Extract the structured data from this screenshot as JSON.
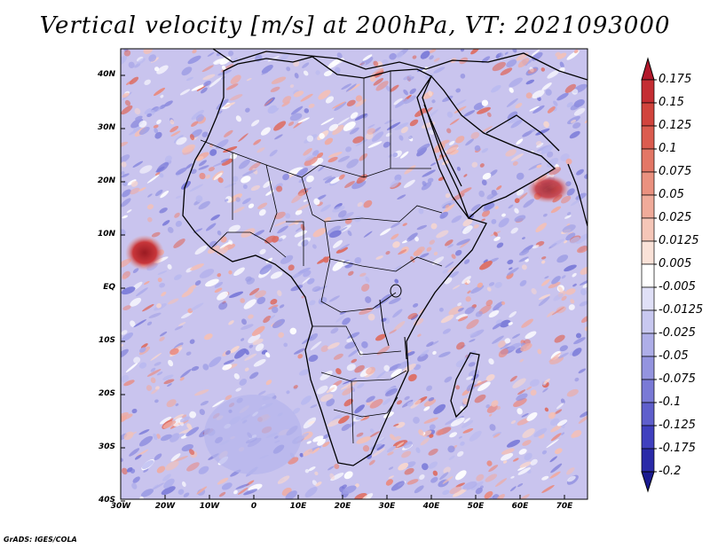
{
  "title": "Vertical velocity [m/s] at 200hPa, VT: 2021093000",
  "footer": "GrADS: IGES/COLA",
  "map": {
    "lat_labels": [
      "40N",
      "30N",
      "20N",
      "10N",
      "EQ",
      "10S",
      "20S",
      "30S",
      "40S"
    ],
    "lon_labels": [
      "30W",
      "20W",
      "10W",
      "0",
      "10E",
      "20E",
      "30E",
      "40E",
      "50E",
      "60E",
      "70E"
    ]
  },
  "colorbar": {
    "labels": [
      "0.175",
      "0.15",
      "0.125",
      "0.1",
      "0.075",
      "0.05",
      "0.025",
      "0.0125",
      "0.005",
      "-0.005",
      "-0.0125",
      "-0.025",
      "-0.05",
      "-0.075",
      "-0.1",
      "-0.125",
      "-0.175",
      "-0.2"
    ],
    "colors": [
      "#b2182b",
      "#c42e33",
      "#d1443d",
      "#db5c4f",
      "#e37766",
      "#ea917f",
      "#f0ab9a",
      "#f5c6b8",
      "#fae2d8",
      "#ffffff",
      "#e0e0f7",
      "#c8c8f0",
      "#aeaee8",
      "#9494df",
      "#7a7ad6",
      "#5f5fcc",
      "#4040bf",
      "#2a2aa8",
      "#1a1a90"
    ]
  }
}
